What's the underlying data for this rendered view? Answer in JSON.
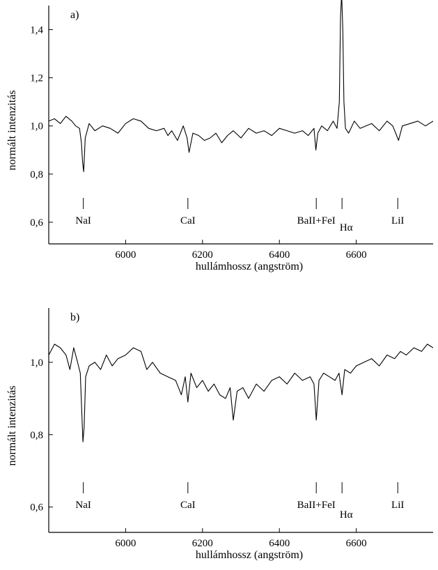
{
  "chart_data": [
    {
      "type": "line",
      "panel_label": "a)",
      "xlabel": "hullámhossz (angström)",
      "ylabel": "normált intenzitás",
      "xlim": [
        5800,
        6800
      ],
      "ylim": [
        0.51,
        1.5
      ],
      "x_ticks": [
        6000,
        6200,
        6400,
        6600
      ],
      "x_tick_labels": [
        "6000",
        "6200",
        "6400",
        "6600"
      ],
      "y_ticks": [
        0.6,
        0.8,
        1.0,
        1.2,
        1.4
      ],
      "y_tick_labels": [
        "0,6",
        "0,8",
        "1,0",
        "1,2",
        "1,4"
      ],
      "line_markers": [
        {
          "label": "NaI",
          "x": 5890
        },
        {
          "label": "CaI",
          "x": 6162
        },
        {
          "label": "BaII+FeI",
          "x": 6496
        },
        {
          "label": "Hα",
          "x": 6563
        },
        {
          "label": "LiI",
          "x": 6708
        }
      ],
      "series": [
        {
          "x": [
            5800,
            5815,
            5830,
            5845,
            5860,
            5870,
            5880,
            5885,
            5888,
            5891,
            5895,
            5905,
            5920,
            5940,
            5960,
            5980,
            6000,
            6020,
            6040,
            6060,
            6080,
            6100,
            6110,
            6120,
            6135,
            6150,
            6160,
            6165,
            6175,
            6190,
            6205,
            6220,
            6235,
            6250,
            6265,
            6280,
            6300,
            6320,
            6340,
            6360,
            6380,
            6400,
            6420,
            6440,
            6460,
            6475,
            6490,
            6495,
            6500,
            6510,
            6525,
            6540,
            6550,
            6556,
            6559,
            6562,
            6565,
            6568,
            6572,
            6580,
            6595,
            6610,
            6625,
            6640,
            6660,
            6680,
            6695,
            6705,
            6710,
            6720,
            6740,
            6760,
            6780,
            6800
          ],
          "y": [
            1.02,
            1.03,
            1.01,
            1.04,
            1.02,
            1.0,
            0.99,
            0.93,
            0.85,
            0.81,
            0.95,
            1.01,
            0.98,
            1.0,
            0.99,
            0.97,
            1.01,
            1.03,
            1.02,
            0.99,
            0.98,
            0.99,
            0.96,
            0.98,
            0.94,
            1.0,
            0.95,
            0.89,
            0.97,
            0.96,
            0.94,
            0.95,
            0.97,
            0.93,
            0.96,
            0.98,
            0.95,
            0.99,
            0.97,
            0.98,
            0.96,
            0.99,
            0.98,
            0.97,
            0.98,
            0.96,
            0.99,
            0.9,
            0.97,
            1.0,
            0.98,
            1.02,
            0.99,
            1.1,
            1.45,
            1.55,
            1.4,
            1.1,
            0.99,
            0.97,
            1.02,
            0.99,
            1.0,
            1.01,
            0.98,
            1.02,
            1.0,
            0.96,
            0.94,
            1.0,
            1.01,
            1.02,
            1.0,
            1.02
          ]
        }
      ]
    },
    {
      "type": "line",
      "panel_label": "b)",
      "xlabel": "hullámhossz (angström)",
      "ylabel": "normált intenzitás",
      "xlim": [
        5800,
        6800
      ],
      "ylim": [
        0.53,
        1.15
      ],
      "x_ticks": [
        6000,
        6200,
        6400,
        6600
      ],
      "x_tick_labels": [
        "6000",
        "6200",
        "6400",
        "6600"
      ],
      "y_ticks": [
        0.6,
        0.8,
        1.0
      ],
      "y_tick_labels": [
        "0,6",
        "0,8",
        "1,0"
      ],
      "line_markers": [
        {
          "label": "NaI",
          "x": 5890
        },
        {
          "label": "CaI",
          "x": 6162
        },
        {
          "label": "BaII+FeI",
          "x": 6496
        },
        {
          "label": "Hα",
          "x": 6563
        },
        {
          "label": "LiI",
          "x": 6708
        }
      ],
      "series": [
        {
          "x": [
            5800,
            5815,
            5830,
            5845,
            5855,
            5865,
            5875,
            5882,
            5886,
            5889,
            5892,
            5896,
            5905,
            5920,
            5935,
            5950,
            5965,
            5980,
            6000,
            6020,
            6040,
            6055,
            6070,
            6090,
            6110,
            6130,
            6145,
            6155,
            6162,
            6170,
            6185,
            6200,
            6215,
            6230,
            6245,
            6260,
            6272,
            6280,
            6290,
            6305,
            6320,
            6340,
            6360,
            6380,
            6400,
            6420,
            6440,
            6460,
            6480,
            6490,
            6496,
            6503,
            6515,
            6530,
            6545,
            6555,
            6563,
            6570,
            6585,
            6600,
            6620,
            6640,
            6660,
            6680,
            6700,
            6715,
            6730,
            6750,
            6770,
            6785,
            6800
          ],
          "y": [
            1.02,
            1.05,
            1.04,
            1.02,
            0.98,
            1.04,
            1.0,
            0.97,
            0.86,
            0.78,
            0.82,
            0.96,
            0.99,
            1.0,
            0.98,
            1.02,
            0.99,
            1.01,
            1.02,
            1.04,
            1.03,
            0.98,
            1.0,
            0.97,
            0.96,
            0.95,
            0.91,
            0.96,
            0.89,
            0.97,
            0.93,
            0.95,
            0.92,
            0.94,
            0.91,
            0.9,
            0.93,
            0.84,
            0.92,
            0.93,
            0.9,
            0.94,
            0.92,
            0.95,
            0.96,
            0.94,
            0.97,
            0.95,
            0.96,
            0.94,
            0.84,
            0.95,
            0.97,
            0.96,
            0.95,
            0.97,
            0.91,
            0.98,
            0.97,
            0.99,
            1.0,
            1.01,
            0.99,
            1.02,
            1.01,
            1.03,
            1.02,
            1.04,
            1.03,
            1.05,
            1.04
          ]
        }
      ]
    }
  ]
}
